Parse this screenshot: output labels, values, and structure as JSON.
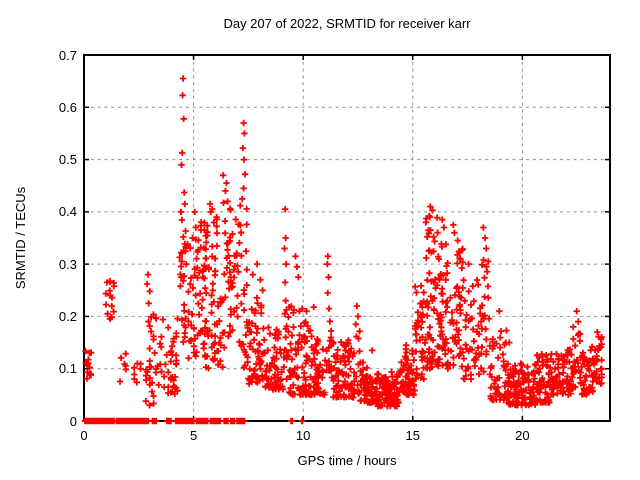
{
  "chart_data": {
    "type": "scatter",
    "title": "Day 207 of 2022, SRMTID for receiver karr",
    "xlabel": "GPS time / hours",
    "ylabel": "SRMTID / TECUs",
    "xlim": [
      0,
      24
    ],
    "ylim": [
      0,
      0.7
    ],
    "xticks": [
      0,
      5,
      10,
      15,
      20
    ],
    "yticks": [
      0,
      0.1,
      0.2,
      0.3,
      0.4,
      0.5,
      0.6,
      0.7
    ],
    "grid": "dashed-gray-at-ticks",
    "legend": "none",
    "marker": "plus",
    "marker_color": "#ff0000",
    "axis_color": "#000000",
    "grid_color": "#909090",
    "seed": 7,
    "notable_points": [
      [
        4.52,
        0.655
      ],
      [
        4.5,
        0.623
      ],
      [
        4.55,
        0.578
      ],
      [
        4.48,
        0.513
      ],
      [
        4.45,
        0.49
      ],
      [
        4.57,
        0.437
      ],
      [
        4.6,
        0.415
      ],
      [
        4.42,
        0.4
      ],
      [
        5.05,
        0.4
      ],
      [
        5.1,
        0.37
      ],
      [
        4.95,
        0.35
      ],
      [
        5.75,
        0.415
      ],
      [
        5.85,
        0.405
      ],
      [
        6.05,
        0.39
      ],
      [
        6.35,
        0.47
      ],
      [
        6.5,
        0.455
      ],
      [
        6.45,
        0.44
      ],
      [
        6.55,
        0.42
      ],
      [
        7.28,
        0.57
      ],
      [
        7.32,
        0.55
      ],
      [
        7.25,
        0.522
      ],
      [
        7.3,
        0.5
      ],
      [
        7.35,
        0.472
      ],
      [
        7.28,
        0.445
      ],
      [
        7.22,
        0.425
      ],
      [
        7.7,
        0.28
      ],
      [
        7.9,
        0.3
      ],
      [
        8.05,
        0.27
      ],
      [
        8.15,
        0.25
      ],
      [
        9.18,
        0.405
      ],
      [
        9.2,
        0.35
      ],
      [
        9.15,
        0.33
      ],
      [
        9.22,
        0.3
      ],
      [
        9.18,
        0.265
      ],
      [
        9.2,
        0.23
      ],
      [
        9.65,
        0.315
      ],
      [
        9.72,
        0.295
      ],
      [
        9.78,
        0.275
      ],
      [
        10.15,
        0.21
      ],
      [
        11.13,
        0.315
      ],
      [
        11.1,
        0.3
      ],
      [
        11.16,
        0.275
      ],
      [
        11.12,
        0.245
      ],
      [
        11.18,
        0.215
      ],
      [
        12.45,
        0.22
      ],
      [
        12.5,
        0.2
      ],
      [
        12.4,
        0.185
      ],
      [
        13.15,
        0.135
      ],
      [
        14.7,
        0.145
      ],
      [
        15.8,
        0.41
      ],
      [
        15.9,
        0.403
      ],
      [
        15.75,
        0.392
      ],
      [
        15.6,
        0.38
      ],
      [
        16.35,
        0.385
      ],
      [
        16.42,
        0.37
      ],
      [
        16.85,
        0.375
      ],
      [
        16.9,
        0.36
      ],
      [
        17.05,
        0.345
      ],
      [
        17.55,
        0.3
      ],
      [
        18.22,
        0.37
      ],
      [
        18.3,
        0.35
      ],
      [
        18.35,
        0.33
      ],
      [
        18.95,
        0.21
      ],
      [
        19.4,
        0.15
      ],
      [
        22.48,
        0.21
      ],
      [
        22.55,
        0.19
      ],
      [
        23.42,
        0.17
      ],
      [
        2.92,
        0.28
      ],
      [
        2.88,
        0.262
      ],
      [
        3.0,
        0.248
      ],
      [
        2.95,
        0.225
      ],
      [
        1.05,
        0.265
      ],
      [
        1.2,
        0.24
      ]
    ],
    "dense_clusters": [
      {
        "x_from": 0.05,
        "x_to": 0.35,
        "y_min": 0.08,
        "y_max": 0.135,
        "count": 14,
        "skew": 1.0
      },
      {
        "x_from": 0.95,
        "x_to": 1.4,
        "y_min": 0.195,
        "y_max": 0.27,
        "count": 13,
        "skew": 1.0
      },
      {
        "x_from": 1.55,
        "x_to": 2.0,
        "y_min": 0.075,
        "y_max": 0.13,
        "count": 6,
        "skew": 1.0
      },
      {
        "x_from": 2.2,
        "x_to": 2.65,
        "y_min": 0.05,
        "y_max": 0.11,
        "count": 7,
        "skew": 1.0
      },
      {
        "x_from": 2.75,
        "x_to": 3.25,
        "y_min": 0.03,
        "y_max": 0.21,
        "count": 24,
        "skew": 1.4
      },
      {
        "x_from": 3.2,
        "x_to": 4.3,
        "y_min": 0.05,
        "y_max": 0.2,
        "count": 48,
        "skew": 1.3
      },
      {
        "x_from": 4.35,
        "x_to": 4.75,
        "y_min": 0.14,
        "y_max": 0.4,
        "count": 30,
        "skew": 1.0
      },
      {
        "x_from": 4.75,
        "x_to": 5.6,
        "y_min": 0.12,
        "y_max": 0.35,
        "count": 55,
        "skew": 1.3
      },
      {
        "x_from": 5.3,
        "x_to": 6.1,
        "y_min": 0.28,
        "y_max": 0.4,
        "count": 28,
        "skew": 1.0
      },
      {
        "x_from": 5.5,
        "x_to": 6.35,
        "y_min": 0.1,
        "y_max": 0.28,
        "count": 45,
        "skew": 1.3
      },
      {
        "x_from": 6.35,
        "x_to": 6.9,
        "y_min": 0.14,
        "y_max": 0.42,
        "count": 38,
        "skew": 1.1
      },
      {
        "x_from": 6.9,
        "x_to": 7.45,
        "y_min": 0.1,
        "y_max": 0.42,
        "count": 34,
        "skew": 1.3
      },
      {
        "x_from": 7.45,
        "x_to": 8.2,
        "y_min": 0.07,
        "y_max": 0.24,
        "count": 60,
        "skew": 1.6
      },
      {
        "x_from": 8.2,
        "x_to": 9.1,
        "y_min": 0.06,
        "y_max": 0.18,
        "count": 70,
        "skew": 1.6
      },
      {
        "x_from": 9.1,
        "x_to": 9.35,
        "y_min": 0.08,
        "y_max": 0.22,
        "count": 16,
        "skew": 1.0
      },
      {
        "x_from": 9.35,
        "x_to": 10.5,
        "y_min": 0.05,
        "y_max": 0.22,
        "count": 95,
        "skew": 1.9
      },
      {
        "x_from": 10.5,
        "x_to": 11.05,
        "y_min": 0.05,
        "y_max": 0.16,
        "count": 45,
        "skew": 1.6
      },
      {
        "x_from": 11.05,
        "x_to": 11.3,
        "y_min": 0.08,
        "y_max": 0.2,
        "count": 14,
        "skew": 1.0
      },
      {
        "x_from": 11.3,
        "x_to": 12.3,
        "y_min": 0.045,
        "y_max": 0.155,
        "count": 80,
        "skew": 1.7
      },
      {
        "x_from": 12.3,
        "x_to": 12.6,
        "y_min": 0.05,
        "y_max": 0.18,
        "count": 16,
        "skew": 1.2
      },
      {
        "x_from": 12.6,
        "x_to": 13.4,
        "y_min": 0.035,
        "y_max": 0.12,
        "count": 70,
        "skew": 1.7
      },
      {
        "x_from": 13.4,
        "x_to": 14.4,
        "y_min": 0.028,
        "y_max": 0.095,
        "count": 95,
        "skew": 1.5
      },
      {
        "x_from": 14.4,
        "x_to": 15.1,
        "y_min": 0.05,
        "y_max": 0.14,
        "count": 55,
        "skew": 1.5
      },
      {
        "x_from": 15.1,
        "x_to": 15.6,
        "y_min": 0.08,
        "y_max": 0.26,
        "count": 45,
        "skew": 1.4
      },
      {
        "x_from": 15.6,
        "x_to": 16.15,
        "y_min": 0.1,
        "y_max": 0.4,
        "count": 60,
        "skew": 1.4
      },
      {
        "x_from": 16.15,
        "x_to": 16.7,
        "y_min": 0.1,
        "y_max": 0.35,
        "count": 50,
        "skew": 1.4
      },
      {
        "x_from": 16.7,
        "x_to": 17.3,
        "y_min": 0.09,
        "y_max": 0.33,
        "count": 45,
        "skew": 1.5
      },
      {
        "x_from": 17.3,
        "x_to": 18.1,
        "y_min": 0.08,
        "y_max": 0.28,
        "count": 45,
        "skew": 1.6
      },
      {
        "x_from": 18.1,
        "x_to": 18.5,
        "y_min": 0.09,
        "y_max": 0.32,
        "count": 25,
        "skew": 1.3
      },
      {
        "x_from": 18.5,
        "x_to": 19.3,
        "y_min": 0.04,
        "y_max": 0.18,
        "count": 50,
        "skew": 1.5
      },
      {
        "x_from": 19.3,
        "x_to": 20.6,
        "y_min": 0.03,
        "y_max": 0.11,
        "count": 115,
        "skew": 1.4
      },
      {
        "x_from": 20.6,
        "x_to": 21.4,
        "y_min": 0.035,
        "y_max": 0.13,
        "count": 70,
        "skew": 1.5
      },
      {
        "x_from": 21.4,
        "x_to": 22.3,
        "y_min": 0.05,
        "y_max": 0.14,
        "count": 65,
        "skew": 1.5
      },
      {
        "x_from": 22.3,
        "x_to": 22.65,
        "y_min": 0.06,
        "y_max": 0.18,
        "count": 22,
        "skew": 1.2
      },
      {
        "x_from": 22.65,
        "x_to": 23.3,
        "y_min": 0.05,
        "y_max": 0.15,
        "count": 52,
        "skew": 1.4
      },
      {
        "x_from": 23.3,
        "x_to": 23.75,
        "y_min": 0.07,
        "y_max": 0.165,
        "count": 30,
        "skew": 1.2
      }
    ],
    "zero_value_runs": [
      {
        "x_from": 0.05,
        "x_to": 1.14,
        "count": 32
      },
      {
        "x_from": 1.19,
        "x_to": 1.37,
        "count": 6
      },
      {
        "x_from": 1.49,
        "x_to": 2.66,
        "count": 34
      },
      {
        "x_from": 2.74,
        "x_to": 2.93,
        "count": 6
      },
      {
        "x_from": 3.12,
        "x_to": 3.27,
        "count": 5
      },
      {
        "x_from": 3.77,
        "x_to": 3.95,
        "count": 6
      },
      {
        "x_from": 4.18,
        "x_to": 4.33,
        "count": 5
      },
      {
        "x_from": 4.38,
        "x_to": 5.02,
        "count": 19
      },
      {
        "x_from": 5.14,
        "x_to": 5.4,
        "count": 8
      },
      {
        "x_from": 5.47,
        "x_to": 5.66,
        "count": 6
      },
      {
        "x_from": 5.78,
        "x_to": 6.01,
        "count": 7
      },
      {
        "x_from": 6.08,
        "x_to": 6.2,
        "count": 4
      },
      {
        "x_from": 6.38,
        "x_to": 6.57,
        "count": 6
      },
      {
        "x_from": 6.69,
        "x_to": 6.87,
        "count": 6
      },
      {
        "x_from": 7.0,
        "x_to": 7.3,
        "count": 8
      },
      {
        "x_from": 9.44,
        "x_to": 9.5,
        "count": 2
      },
      {
        "x_from": 9.92,
        "x_to": 9.98,
        "count": 2
      }
    ]
  }
}
